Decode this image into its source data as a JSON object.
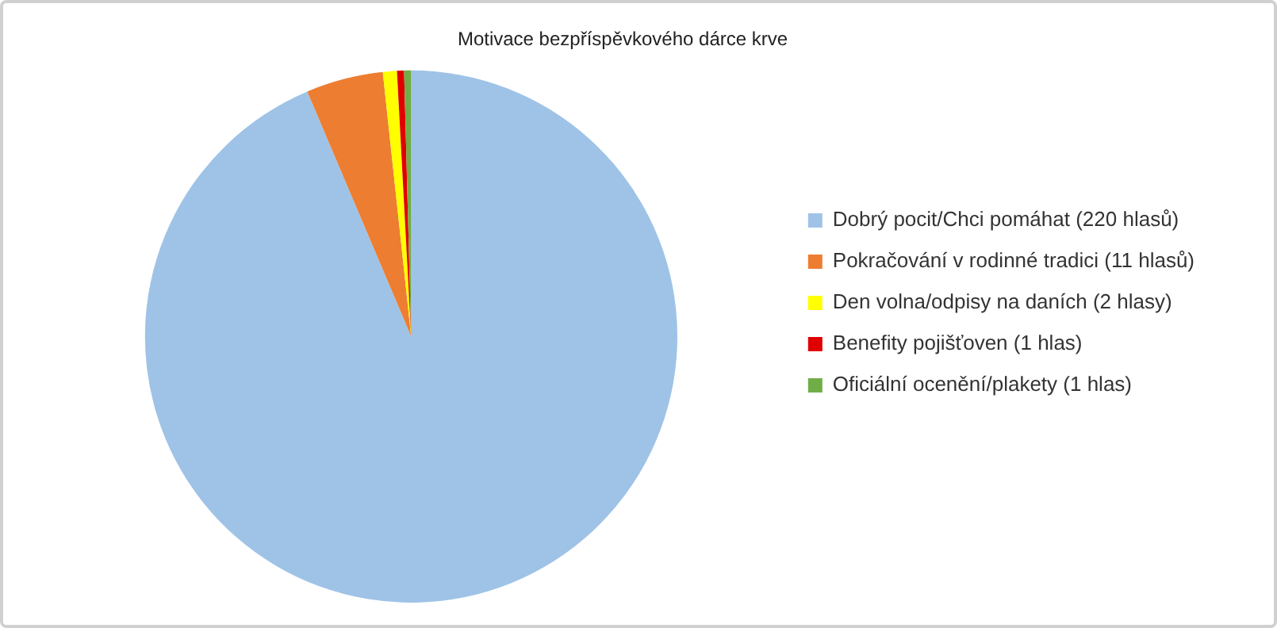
{
  "chart_data": {
    "type": "pie",
    "title": "Motivace bezpříspěvkového dárce krve",
    "categories": [
      "Dobrý pocit/Chci pomáhat (220 hlasů)",
      "Pokračování v rodinné tradici (11 hlasů)",
      "Den volna/odpisy na daních (2 hlasy)",
      "Benefity pojišťoven (1 hlas)",
      "Oficiální ocenění/plakety (1 hlas)"
    ],
    "values": [
      220,
      11,
      2,
      1,
      1
    ],
    "colors": [
      "#9fc3e7",
      "#ed7d31",
      "#ffff00",
      "#e00000",
      "#70ad47"
    ],
    "legend": "right"
  }
}
